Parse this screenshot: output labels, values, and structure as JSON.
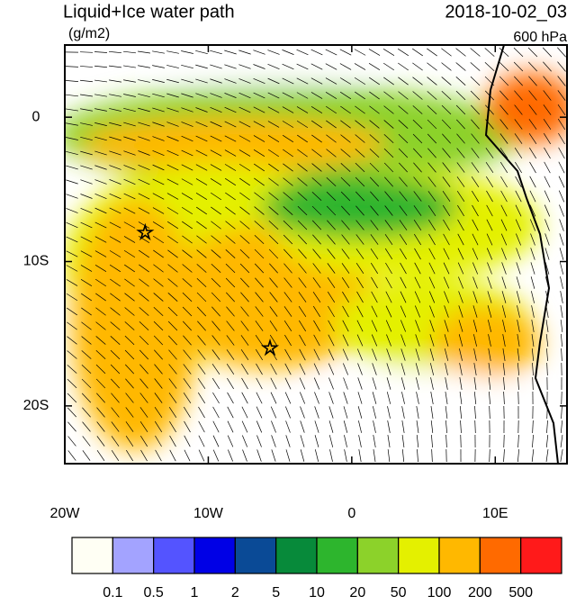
{
  "map": {
    "title": "Liquid+Ice water path",
    "units": "(g/m2)",
    "time": "2018-10-02_03",
    "level": "600 hPa",
    "xlim": [
      -20,
      15
    ],
    "ylim": [
      -24,
      5
    ],
    "xticks": [
      {
        "value": -20,
        "label": "20W"
      },
      {
        "value": -10,
        "label": "10W"
      },
      0,
      {
        "value": 10,
        "label": "10E"
      }
    ],
    "yticks": [
      0,
      {
        "value": -10,
        "label": "10S"
      },
      {
        "value": -20,
        "label": "20S"
      }
    ],
    "markers": [
      {
        "lon": -14.4,
        "lat": -8
      },
      {
        "lon": -5.7,
        "lat": -16
      }
    ],
    "colorbar": {
      "colors": [
        "#fffff4",
        "#a3a3ff",
        "#5454ff",
        "#0000e6",
        "#0a4a96",
        "#078a3a",
        "#2db52d",
        "#8cd22a",
        "#e4f000",
        "#ffb800",
        "#ff6a00",
        "#ff1a1a"
      ],
      "levels": [
        0.1,
        0.5,
        1,
        2,
        5,
        10,
        20,
        50,
        100,
        200,
        500
      ]
    }
  }
}
